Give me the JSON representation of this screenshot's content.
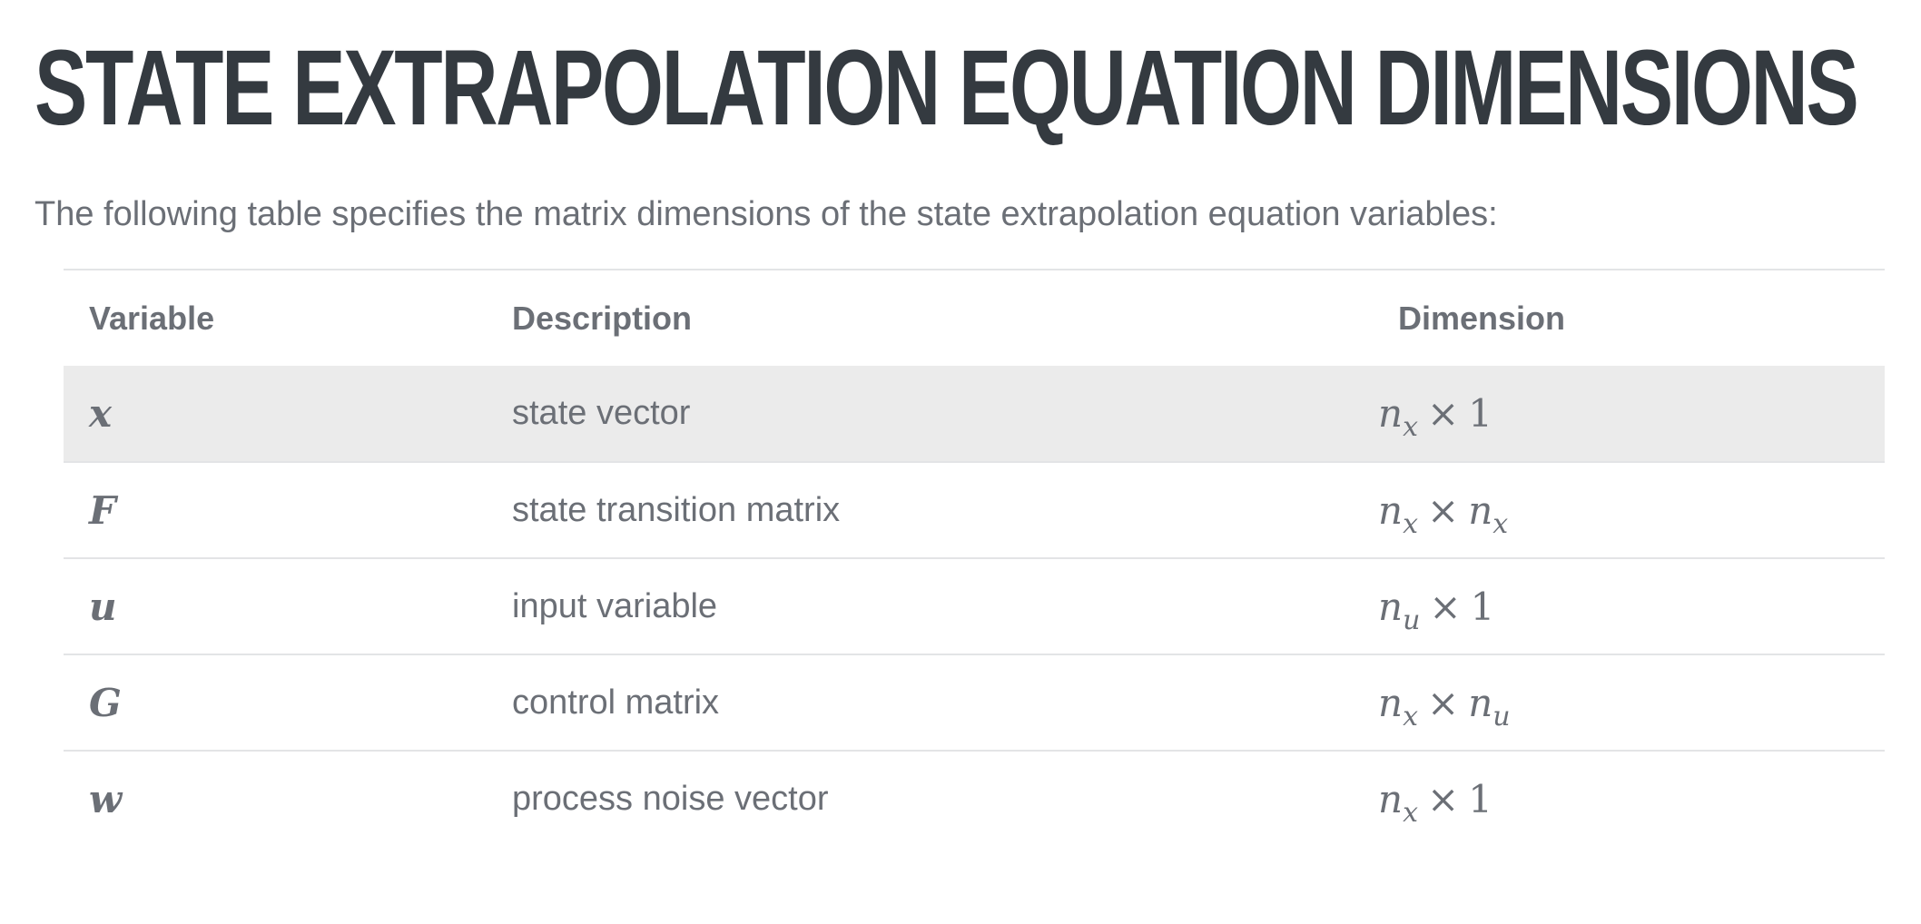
{
  "title": "STATE EXTRAPOLATION EQUATION DIMENSIONS",
  "intro": "The following table specifies the matrix dimensions of the state extrapolation equation variables:",
  "table": {
    "headers": {
      "variable": "Variable",
      "description": "Description",
      "dimension": "Dimension"
    },
    "rows": [
      {
        "variable": "x",
        "description": "state vector",
        "dimension": {
          "a": "n",
          "a_sub": "x",
          "times": "×",
          "b": "1",
          "b_sub": ""
        }
      },
      {
        "variable": "F",
        "description": "state transition matrix",
        "dimension": {
          "a": "n",
          "a_sub": "x",
          "times": "×",
          "b": "n",
          "b_sub": "x"
        }
      },
      {
        "variable": "u",
        "description": "input variable",
        "dimension": {
          "a": "n",
          "a_sub": "u",
          "times": "×",
          "b": "1",
          "b_sub": ""
        }
      },
      {
        "variable": "G",
        "description": "control matrix",
        "dimension": {
          "a": "n",
          "a_sub": "x",
          "times": "×",
          "b": "n",
          "b_sub": "u"
        }
      },
      {
        "variable": "w",
        "description": "process noise vector",
        "dimension": {
          "a": "n",
          "a_sub": "x",
          "times": "×",
          "b": "1",
          "b_sub": ""
        }
      }
    ]
  }
}
